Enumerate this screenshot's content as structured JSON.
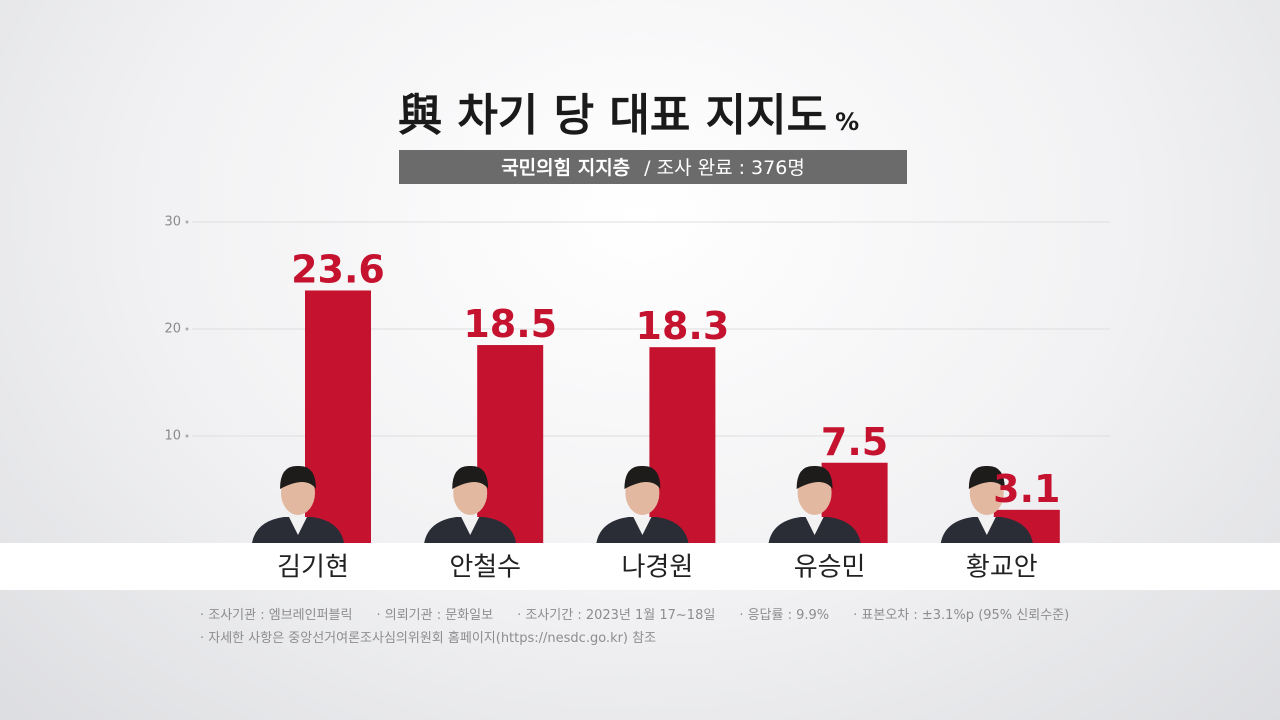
{
  "chart_data": {
    "type": "bar",
    "title": "與 차기 당 대표 지지도",
    "unit": "%",
    "subtitle": {
      "group": "국민의힘 지지층",
      "sample": "/ 조사 완료 : 376명"
    },
    "categories": [
      "김기현",
      "안철수",
      "나경원",
      "유승민",
      "황교안"
    ],
    "values": [
      23.6,
      18.5,
      18.3,
      7.5,
      3.1
    ],
    "color": "#c4122f",
    "ylim": [
      0,
      30
    ],
    "yticks": [
      10,
      20,
      30
    ],
    "grid": true
  },
  "footnotes": [
    [
      "조사기관 : 엠브레인퍼블릭",
      "의뢰기관 : 문화일보",
      "조사기간 : 2023년 1월 17~18일",
      "응답률 : 9.9%",
      "표본오차 : ±3.1%p (95% 신뢰수준)"
    ],
    [
      "자세한 사항은 중앙선거여론조사심의위원회 홈페이지(https://nesdc.go.kr) 참조"
    ]
  ]
}
